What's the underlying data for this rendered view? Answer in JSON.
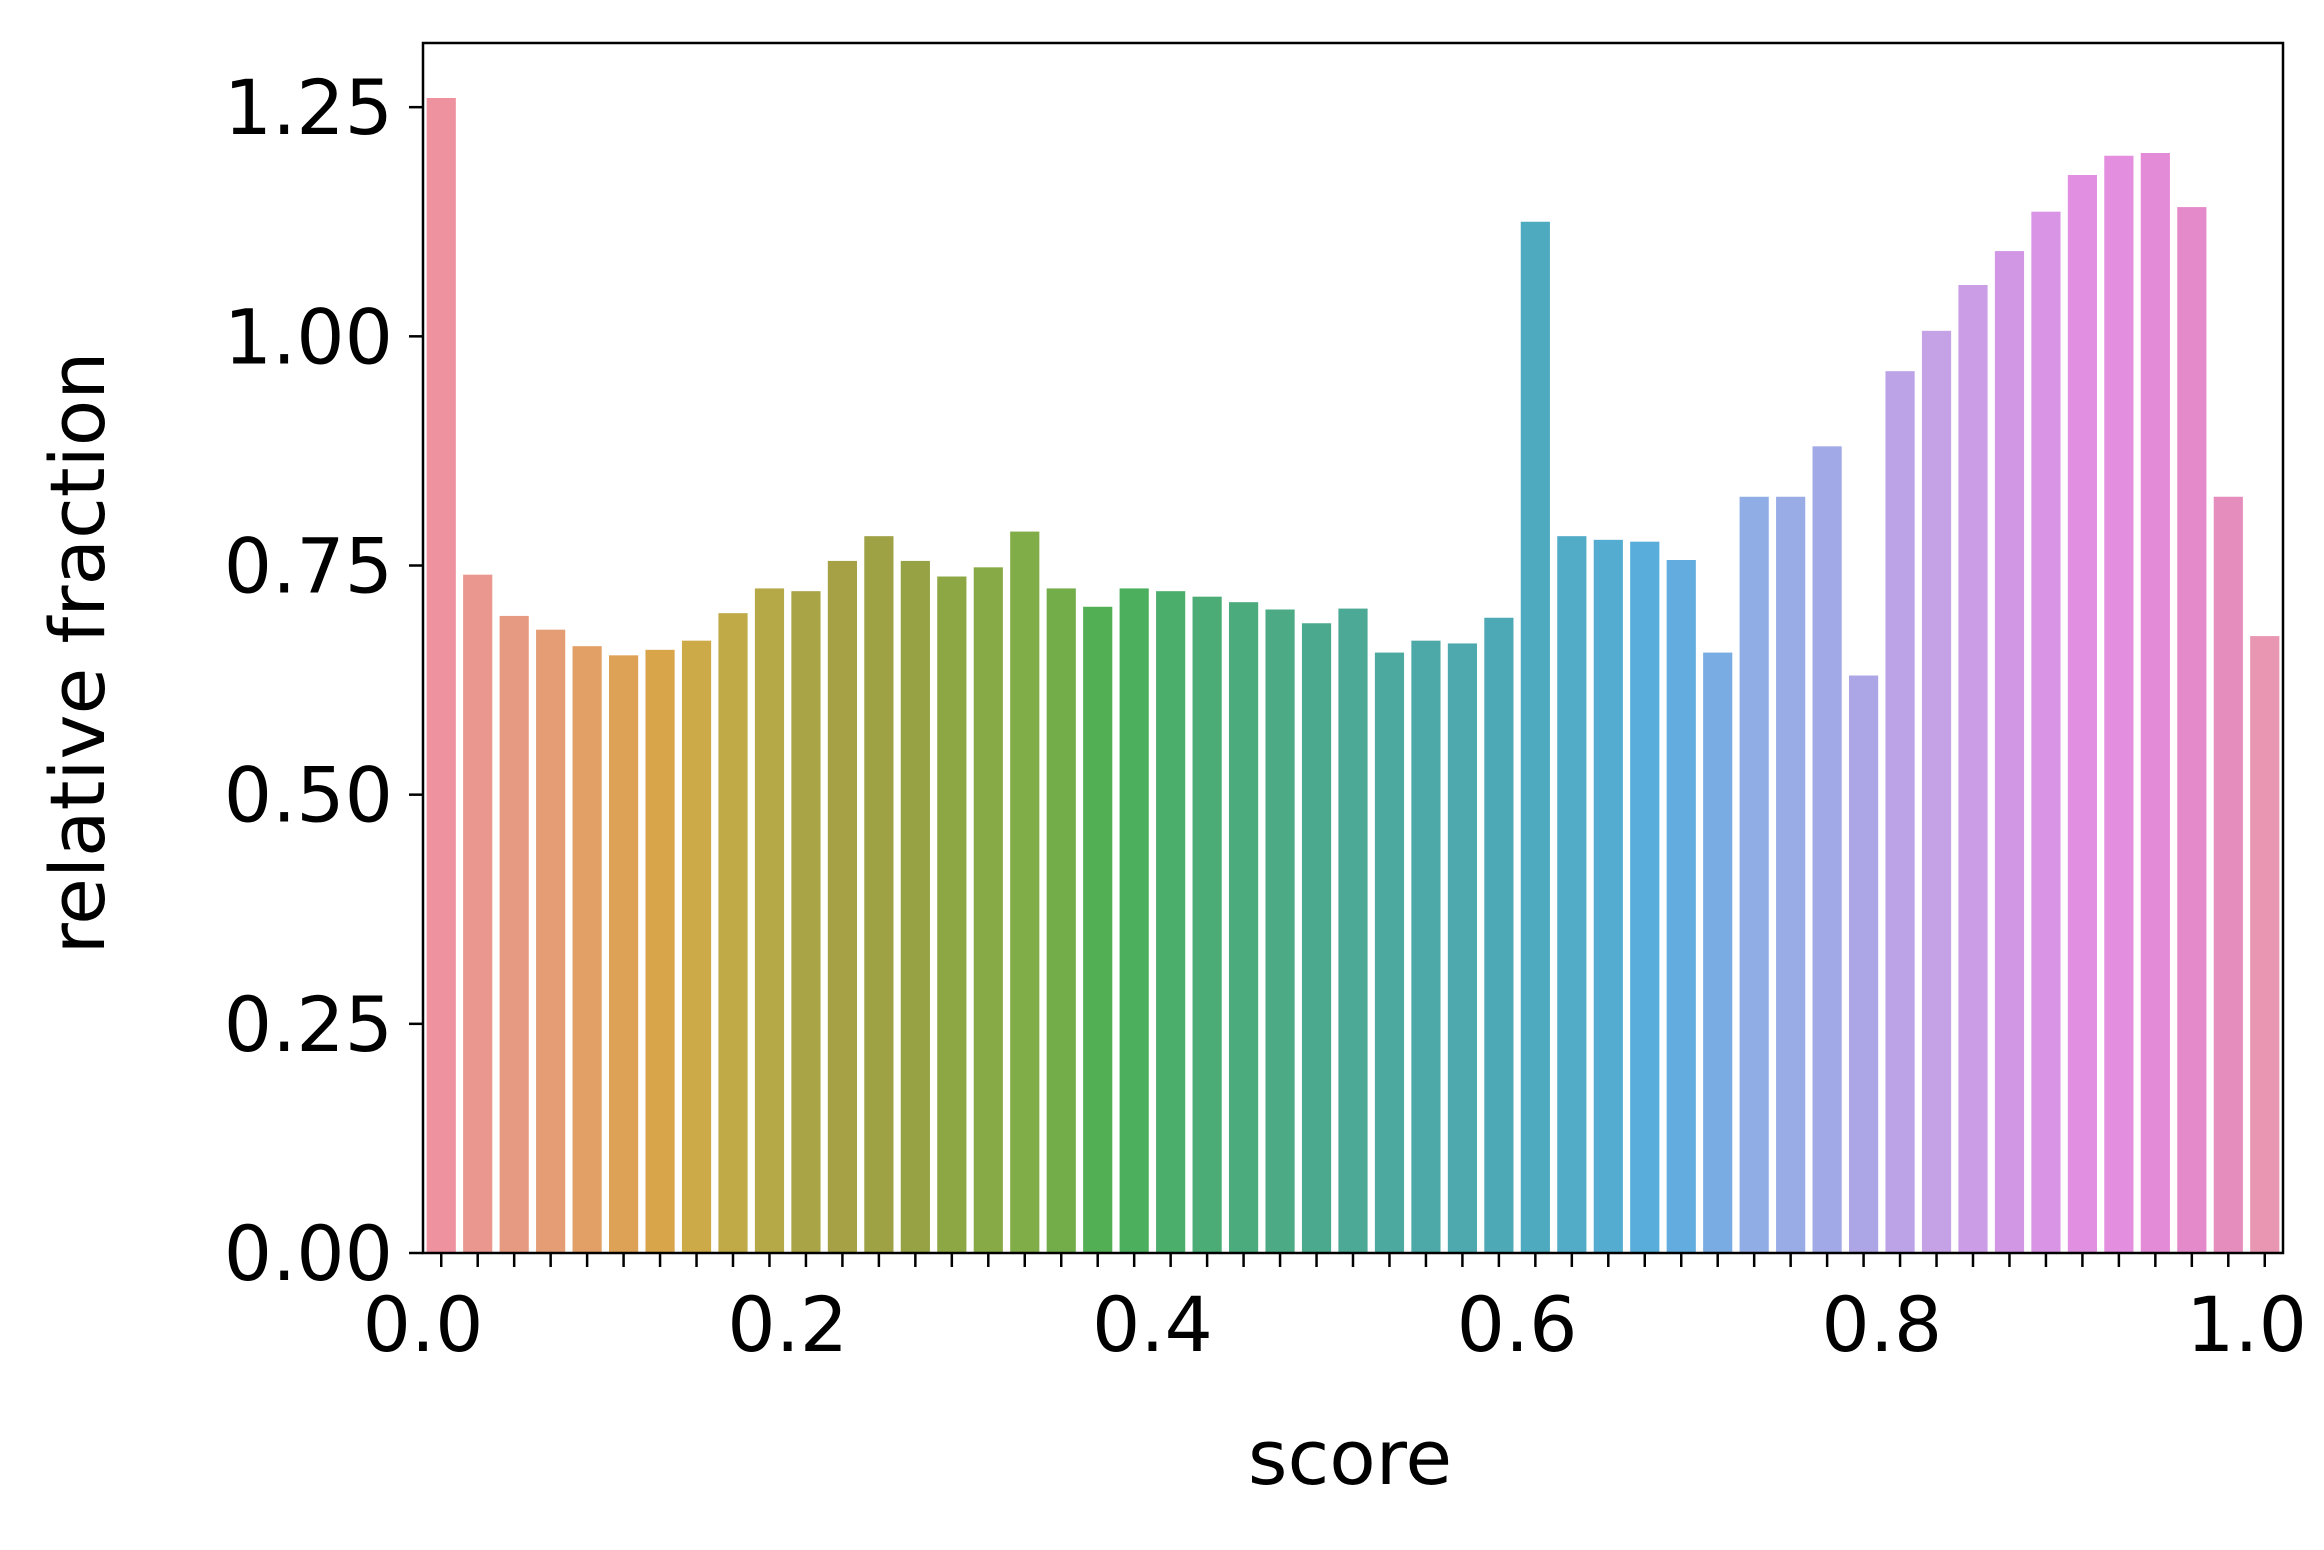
{
  "chart_data": {
    "type": "bar",
    "title": "",
    "xlabel": "score",
    "ylabel": "relative fraction",
    "ylim": [
      0,
      1.32
    ],
    "grid": false,
    "legend": "none",
    "x_ticks": [
      "0.0",
      "0.2",
      "0.4",
      "0.6",
      "0.8",
      "1.0"
    ],
    "x_tick_values": [
      0.0,
      0.2,
      0.4,
      0.6,
      0.8,
      1.0
    ],
    "y_ticks": [
      "0.00",
      "0.25",
      "0.50",
      "0.75",
      "1.00",
      "1.25"
    ],
    "y_tick_values": [
      0,
      0.25,
      0.5,
      0.75,
      1.0,
      1.25
    ],
    "bin_width": 0.02,
    "bins": [
      0.01,
      0.03,
      0.05,
      0.07,
      0.09,
      0.11,
      0.13,
      0.15,
      0.17,
      0.19,
      0.21,
      0.23,
      0.25,
      0.27,
      0.29,
      0.31,
      0.33,
      0.35,
      0.37,
      0.39,
      0.41,
      0.43,
      0.45,
      0.47,
      0.49,
      0.51,
      0.53,
      0.55,
      0.57,
      0.59,
      0.61,
      0.63,
      0.65,
      0.67,
      0.69,
      0.71,
      0.73,
      0.75,
      0.77,
      0.79,
      0.81,
      0.83,
      0.85,
      0.87,
      0.89,
      0.91,
      0.93,
      0.95,
      0.97,
      0.99,
      1.01
    ],
    "values": [
      1.26,
      0.74,
      0.695,
      0.68,
      0.662,
      0.652,
      0.658,
      0.668,
      0.698,
      0.725,
      0.722,
      0.755,
      0.782,
      0.755,
      0.738,
      0.748,
      0.787,
      0.725,
      0.705,
      0.725,
      0.722,
      0.716,
      0.71,
      0.702,
      0.687,
      0.703,
      0.655,
      0.668,
      0.665,
      0.693,
      1.125,
      0.782,
      0.778,
      0.776,
      0.756,
      0.655,
      0.825,
      0.825,
      0.88,
      0.63,
      0.962,
      1.006,
      1.056,
      1.093,
      1.136,
      1.176,
      1.197,
      1.2,
      1.141,
      0.825,
      0.673
    ],
    "colors": [
      "#ee929f",
      "#ea978f",
      "#e79a82",
      "#e59d75",
      "#e29f66",
      "#dea257",
      "#d9a54b",
      "#ccaa48",
      "#bfaa47",
      "#b4a847",
      "#a9a445",
      "#a6a145",
      "#9fa145",
      "#96a244",
      "#8da744",
      "#88aa46",
      "#81ad48",
      "#72ad4a",
      "#52af53",
      "#4caf5e",
      "#4bae6a",
      "#4bac75",
      "#4cab7d",
      "#4caa85",
      "#4ba98d",
      "#4ca996",
      "#4ca99f",
      "#4da9a7",
      "#4ea9af",
      "#4ea9b6",
      "#4eaabe",
      "#52abc7",
      "#55acd1",
      "#58addb",
      "#62acdf",
      "#78ace3",
      "#90ade5",
      "#9aace6",
      "#a1a9e6",
      "#aca6e6",
      "#bca2e7",
      "#c5a2e6",
      "#cb9de6",
      "#d197e5",
      "#d994e5",
      "#e08fe1",
      "#e38edf",
      "#e48bd8",
      "#e48acb",
      "#e58ebe",
      "#e896b2"
    ]
  }
}
